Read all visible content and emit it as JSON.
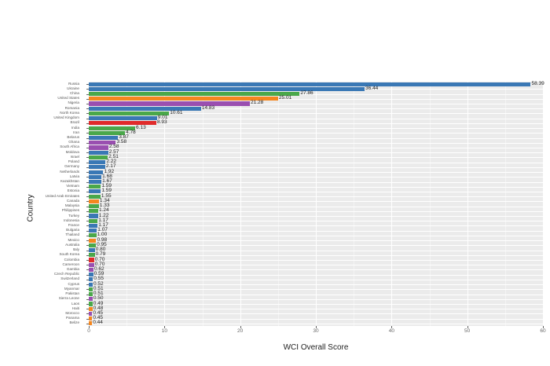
{
  "chart_data": {
    "type": "bar",
    "orientation": "horizontal",
    "title": "",
    "xlabel": "WCI Overall Score",
    "ylabel": "Country",
    "xlim": [
      0,
      60
    ],
    "xticks": [
      0,
      10,
      20,
      30,
      40,
      50,
      60
    ],
    "grid": true,
    "legend": "none",
    "categories": [
      "Russia",
      "Ukraine",
      "China",
      "United States",
      "Nigeria",
      "Romania",
      "North Korea",
      "United Kingdom",
      "Brazil",
      "India",
      "Iran",
      "Belarus",
      "Ghana",
      "South Africa",
      "Moldova",
      "Israel",
      "Poland",
      "Germany",
      "Netherlands",
      "Latvia",
      "Kazakhstan",
      "Vietnam",
      "Estonia",
      "United Arab Emirates",
      "Canada",
      "Malaysia",
      "Philippines",
      "Turkey",
      "Indonesia",
      "France",
      "Bulgaria",
      "Thailand",
      "Mexico",
      "Australia",
      "Italy",
      "South Korea",
      "Colombia",
      "Cameroon",
      "Gambia",
      "Czech Republic",
      "Switzerland",
      "Cyprus",
      "Myanmar",
      "Pakistan",
      "Sierra Leone",
      "Laos",
      "Haiti",
      "Morocco",
      "Panama",
      "Belize"
    ],
    "values": [
      58.39,
      36.44,
      27.86,
      25.01,
      21.28,
      14.83,
      10.61,
      9.01,
      8.93,
      6.13,
      4.78,
      3.87,
      3.58,
      2.58,
      2.57,
      2.51,
      2.22,
      2.17,
      1.92,
      1.68,
      1.67,
      1.59,
      1.59,
      1.55,
      1.34,
      1.33,
      1.24,
      1.22,
      1.17,
      1.17,
      1.07,
      1.0,
      0.98,
      0.95,
      0.8,
      0.79,
      0.7,
      0.7,
      0.62,
      0.59,
      0.55,
      0.52,
      0.51,
      0.51,
      0.5,
      0.49,
      0.48,
      0.45,
      0.45,
      0.44
    ],
    "value_labels": [
      "58.39",
      "36.44",
      "27.86",
      "25.01",
      "21.28",
      "14.83",
      "10.61",
      "9.01",
      "8.93",
      "6.13",
      "4.78",
      "3.87",
      "3.58",
      "2.58",
      "2.57",
      "2.51",
      "2.22",
      "2.17",
      "1.92",
      "1.68",
      "1.67",
      "1.59",
      "1.59",
      "1.55",
      "1.34",
      "1.33",
      "1.24",
      "1.22",
      "1.17",
      "1.17",
      "1.07",
      "1.00",
      "0.98",
      "0.95",
      "0.80",
      "0.79",
      "0.70",
      "0.70",
      "0.62",
      "0.59",
      "0.55",
      "0.52",
      "0.51",
      "0.51",
      "0.50",
      "0.49",
      "0.48",
      "0.45",
      "0.45",
      "0.44"
    ],
    "bar_colors": [
      "#3a78b5",
      "#3a78b5",
      "#4aa84a",
      "#f5871f",
      "#9a4fb0",
      "#3a78b5",
      "#4aa84a",
      "#3a78b5",
      "#e02b2b",
      "#4aa84a",
      "#4aa84a",
      "#3a78b5",
      "#9a4fb0",
      "#9a4fb0",
      "#3a78b5",
      "#4aa84a",
      "#3a78b5",
      "#3a78b5",
      "#3a78b5",
      "#3a78b5",
      "#3a78b5",
      "#4aa84a",
      "#3a78b5",
      "#4aa84a",
      "#f5871f",
      "#4aa84a",
      "#4aa84a",
      "#3a78b5",
      "#4aa84a",
      "#3a78b5",
      "#3a78b5",
      "#4aa84a",
      "#f5871f",
      "#4aa84a",
      "#3a78b5",
      "#4aa84a",
      "#e02b2b",
      "#9a4fb0",
      "#9a4fb0",
      "#3a78b5",
      "#3a78b5",
      "#3a78b5",
      "#4aa84a",
      "#4aa84a",
      "#9a4fb0",
      "#4aa84a",
      "#f5871f",
      "#9a4fb0",
      "#f5871f",
      "#f5871f"
    ],
    "xtick_labels": [
      "0",
      "10",
      "20",
      "30",
      "40",
      "50",
      "60"
    ]
  }
}
